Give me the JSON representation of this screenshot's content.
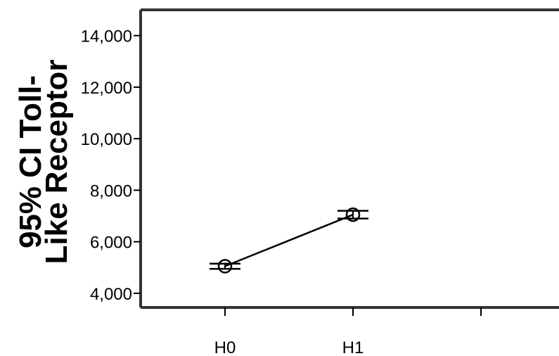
{
  "chart_data": {
    "type": "line",
    "title": "",
    "xlabel": "",
    "ylabel_lines": [
      "95% CI Toll-",
      "Like Receptor"
    ],
    "categories": [
      "H0",
      "H1"
    ],
    "series": [
      {
        "values": [
          5050,
          7050
        ],
        "ci_lower": [
          4950,
          6900
        ],
        "ci_upper": [
          5150,
          7200
        ]
      }
    ],
    "yticks": [
      4000,
      6000,
      8000,
      10000,
      12000,
      14000
    ],
    "ytick_labels": [
      "4,000",
      "6,000",
      "8,000",
      "10,000",
      "12,000",
      "14,000"
    ],
    "ylim": [
      3450,
      15000
    ],
    "grid": false,
    "legend": "none",
    "colors": {
      "axis": "#333333",
      "line": "#000000",
      "marker": "#000000"
    }
  }
}
